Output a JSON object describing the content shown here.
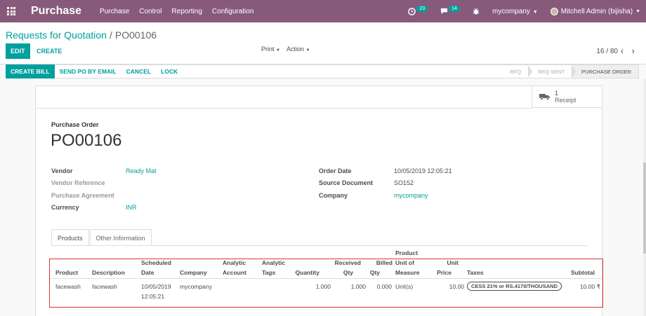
{
  "navbar": {
    "brand": "Purchase",
    "menu": [
      "Purchase",
      "Control",
      "Reporting",
      "Configuration"
    ],
    "activity_badge": "23",
    "messages_badge": "14",
    "company": "mycompany",
    "user": "Mitchell Admin (bijisha)"
  },
  "breadcrumb": {
    "parent": "Requests for Quotation",
    "separator": "/",
    "current": "PO00106"
  },
  "toolbar": {
    "edit": "EDIT",
    "create": "CREATE",
    "print": "Print",
    "action": "Action",
    "pager": "16 / 80"
  },
  "statusbar": {
    "buttons": [
      "CREATE BILL",
      "SEND PO BY EMAIL",
      "CANCEL",
      "LOCK"
    ],
    "stages": [
      "RFQ",
      "RFQ SENT",
      "PURCHASE ORDER"
    ]
  },
  "smart_button": {
    "count": "1",
    "label": "Receipt"
  },
  "form": {
    "doc_label": "Purchase Order",
    "doc_name": "PO00106",
    "vendor_label": "Vendor",
    "vendor": "Ready Mat",
    "vendor_ref_label": "Vendor Reference",
    "agreement_label": "Purchase Agreement",
    "currency_label": "Currency",
    "currency": "INR",
    "order_date_label": "Order Date",
    "order_date": "10/05/2019 12:05:21",
    "source_label": "Source Document",
    "source": "SO152",
    "company_label": "Company",
    "company": "mycompany"
  },
  "tabs": [
    "Products",
    "Other Information"
  ],
  "table": {
    "headers": {
      "product": "Product",
      "description": "Description",
      "scheduled_1": "Scheduled",
      "scheduled_2": "Date",
      "company": "Company",
      "analytic_account_1": "Analytic",
      "analytic_account_2": "Account",
      "analytic_tags_1": "Analytic",
      "analytic_tags_2": "Tags",
      "quantity": "Quantity",
      "received_1": "Received",
      "received_2": "Qty",
      "billed_1": "Billed",
      "billed_2": "Qty",
      "uom_1": "Product",
      "uom_2": "Unit of",
      "uom_3": "Measure",
      "price_1": "Unit",
      "price_2": "Price",
      "taxes": "Taxes",
      "subtotal": "Subtotal"
    },
    "row": {
      "product": "facewash",
      "description": "facewash",
      "date_1": "10/05/2019",
      "date_2": "12:05:21",
      "company": "mycompany",
      "quantity": "1.000",
      "received": "1.000",
      "billed": "0.000",
      "uom": "Unit(s)",
      "price": "10.00",
      "tax": "CESS 21% or RS.4170/THOUSAND",
      "subtotal": "10.00 ₹"
    }
  }
}
